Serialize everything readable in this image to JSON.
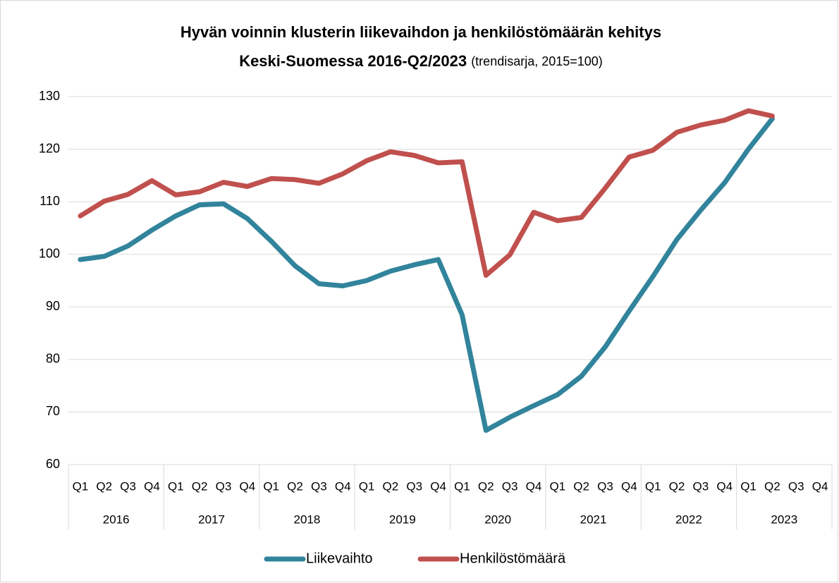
{
  "chart_data": {
    "type": "line",
    "title": "Hyvän voinnin klusterin liikevaihdon ja henkilöstömäärän kehitys",
    "title_line2": "Keski-Suomessa 2016-Q2/2023",
    "subtitle": "(trendisarja, 2015=100)",
    "categories": [
      "Q1",
      "Q2",
      "Q3",
      "Q4",
      "Q1",
      "Q2",
      "Q3",
      "Q4",
      "Q1",
      "Q2",
      "Q3",
      "Q4",
      "Q1",
      "Q2",
      "Q3",
      "Q4",
      "Q1",
      "Q2",
      "Q3",
      "Q4",
      "Q1",
      "Q2",
      "Q3",
      "Q4",
      "Q1",
      "Q2",
      "Q3",
      "Q4",
      "Q1",
      "Q2",
      "Q3",
      "Q4"
    ],
    "category_groups": [
      "2016",
      "2017",
      "2018",
      "2019",
      "2020",
      "2021",
      "2022",
      "2023"
    ],
    "series": [
      {
        "name": "Liikevaihto",
        "color": "#31849b",
        "values": [
          99.0,
          99.6,
          101.6,
          104.6,
          107.3,
          109.4,
          109.6,
          106.8,
          102.5,
          97.8,
          94.4,
          94.0,
          95.0,
          96.8,
          98.0,
          99.0,
          88.5,
          66.5,
          69.0,
          71.2,
          73.3,
          76.8,
          82.4,
          89.2,
          95.8,
          102.8,
          108.4,
          113.6,
          120.0,
          125.8,
          null,
          null
        ]
      },
      {
        "name": "Henkilöstömäärä",
        "color": "#c0504d",
        "values": [
          107.3,
          110.1,
          111.4,
          114.0,
          111.3,
          111.9,
          113.7,
          112.9,
          114.4,
          114.2,
          113.5,
          115.3,
          117.8,
          119.5,
          118.8,
          117.4,
          117.6,
          96.0,
          99.9,
          108.0,
          106.4,
          107.0,
          112.6,
          118.5,
          119.8,
          123.2,
          124.6,
          125.5,
          127.3,
          126.3,
          null,
          null
        ]
      }
    ],
    "ylim": [
      60,
      130
    ],
    "yticks": [
      60,
      70,
      80,
      90,
      100,
      110,
      120,
      130
    ],
    "grid": true,
    "legend": "bottom"
  }
}
